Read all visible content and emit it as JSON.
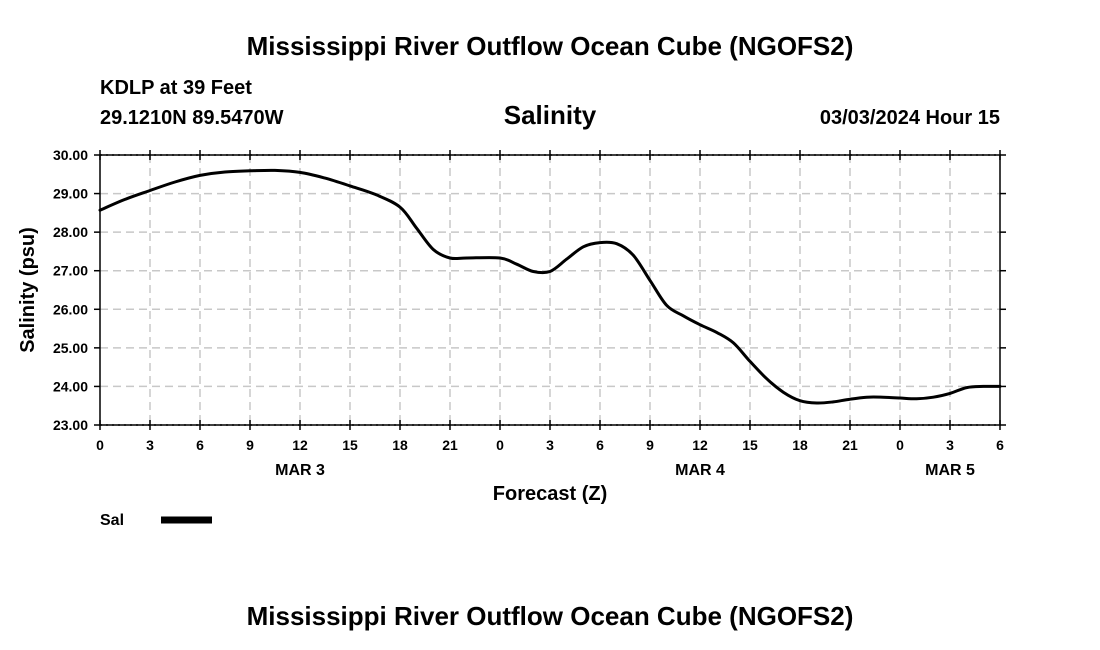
{
  "header": {
    "title": "Mississippi River Outflow Ocean Cube (NGOFS2)",
    "station": "KDLP at 39 Feet",
    "coords": "29.1210N  89.5470W",
    "parameter": "Salinity",
    "datetime": "03/03/2024 Hour 15"
  },
  "footer": {
    "title": "Mississippi River Outflow Ocean Cube (NGOFS2)"
  },
  "chart_data": {
    "type": "line",
    "title": "Salinity",
    "xlabel": "Forecast (Z)",
    "ylabel": "Salinity (psu)",
    "ylim": [
      23.0,
      30.0
    ],
    "xlim": [
      0,
      54
    ],
    "y_ticks": [
      "23.00",
      "24.00",
      "25.00",
      "26.00",
      "27.00",
      "28.00",
      "29.00",
      "30.00"
    ],
    "x_ticks": [
      "0",
      "3",
      "6",
      "9",
      "12",
      "15",
      "18",
      "21",
      "0",
      "3",
      "6",
      "9",
      "12",
      "15",
      "18",
      "21",
      "0",
      "3",
      "6"
    ],
    "date_labels": [
      {
        "label": "MAR 3",
        "at_hour": 12
      },
      {
        "label": "MAR 4",
        "at_hour": 36
      },
      {
        "label": "MAR 5",
        "at_hour": 51
      }
    ],
    "grid": true,
    "series": [
      {
        "name": "Sal",
        "color": "#000000",
        "x": [
          0,
          1.5,
          3,
          4.5,
          6,
          7.5,
          9,
          10.5,
          12,
          13.5,
          15,
          16.5,
          18,
          19,
          20,
          21,
          22,
          24,
          25,
          26,
          27,
          28,
          29,
          30,
          31,
          32,
          33,
          34,
          35,
          36,
          37,
          38,
          39,
          40,
          41,
          42,
          43,
          44,
          45,
          46,
          47,
          48,
          49,
          50,
          51,
          52,
          53,
          54
        ],
        "values": [
          28.57,
          28.85,
          29.08,
          29.3,
          29.47,
          29.56,
          29.59,
          29.6,
          29.55,
          29.4,
          29.2,
          28.98,
          28.65,
          28.1,
          27.55,
          27.33,
          27.33,
          27.33,
          27.17,
          26.98,
          26.98,
          27.3,
          27.62,
          27.73,
          27.7,
          27.4,
          26.75,
          26.1,
          25.83,
          25.6,
          25.4,
          25.13,
          24.65,
          24.2,
          23.85,
          23.63,
          23.57,
          23.6,
          23.67,
          23.72,
          23.72,
          23.7,
          23.68,
          23.72,
          23.82,
          23.97,
          24.0,
          24.0
        ]
      }
    ],
    "legend": {
      "label": "Sal",
      "placement": "bottom-left"
    }
  }
}
